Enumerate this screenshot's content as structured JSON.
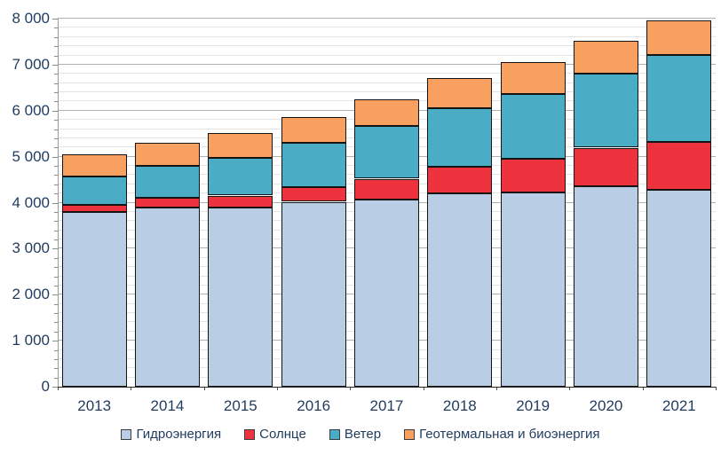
{
  "chart_data": {
    "type": "bar",
    "stacked": true,
    "title": "",
    "xlabel": "",
    "ylabel": "",
    "categories": [
      "2013",
      "2014",
      "2015",
      "2016",
      "2017",
      "2018",
      "2019",
      "2020",
      "2021"
    ],
    "series": [
      {
        "name": "Гидроэнергия",
        "key": "hydro",
        "color": "#b9cde5",
        "values": [
          3800,
          3895,
          3900,
          4020,
          4070,
          4200,
          4225,
          4360,
          4275
        ]
      },
      {
        "name": "Солнце",
        "key": "solar",
        "color": "#ee323e",
        "values": [
          145,
          210,
          255,
          325,
          450,
          580,
          725,
          835,
          1040
        ]
      },
      {
        "name": "Ветер",
        "key": "wind",
        "color": "#4bacc6",
        "values": [
          630,
          690,
          820,
          960,
          1140,
          1270,
          1410,
          1615,
          1900
        ]
      },
      {
        "name": "Геотермальная и биоэнергия",
        "key": "geo-bio",
        "color": "#f7a05f",
        "values": [
          480,
          510,
          530,
          560,
          595,
          660,
          690,
          710,
          755
        ]
      }
    ],
    "ylim": [
      0,
      8000
    ],
    "y_major_step": 1000,
    "y_minor_step": 200,
    "ytick_labels": [
      "0",
      "1 000",
      "2 000",
      "3 000",
      "4 000",
      "5 000",
      "6 000",
      "7 000",
      "8 000"
    ],
    "grid": true,
    "legend_position": "bottom"
  },
  "colors": {
    "grid_major": "#b0b0b0",
    "grid_minor": "#e4e4e4",
    "axis_text": "#1f3b5e",
    "axis_line": "#9a9a9a",
    "bar_border": "#141414",
    "baseline": "#262626",
    "background": "#ffffff"
  }
}
